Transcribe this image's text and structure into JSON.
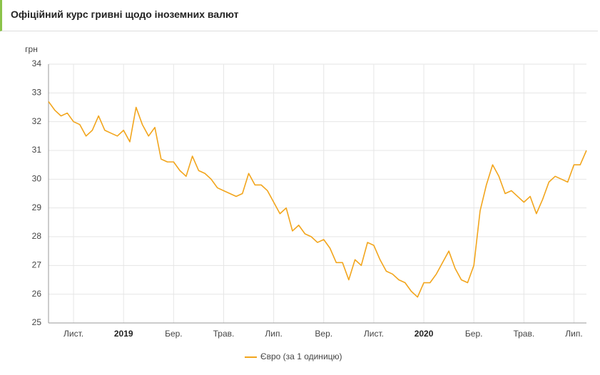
{
  "header": {
    "title": "Офіційний курс гривні щодо іноземних валют"
  },
  "chart_data": {
    "type": "line",
    "y_label": "грн",
    "categories": [
      null,
      null,
      null,
      null,
      "Лист.",
      null,
      null,
      null,
      null,
      null,
      null,
      null,
      "2019",
      null,
      null,
      null,
      null,
      null,
      null,
      null,
      "Бер.",
      null,
      null,
      null,
      null,
      null,
      null,
      null,
      "Трав.",
      null,
      null,
      null,
      null,
      null,
      null,
      null,
      "Лип.",
      null,
      null,
      null,
      null,
      null,
      null,
      null,
      "Вер.",
      null,
      null,
      null,
      null,
      null,
      null,
      null,
      "Лист.",
      null,
      null,
      null,
      null,
      null,
      null,
      null,
      "2020",
      null,
      null,
      null,
      null,
      null,
      null,
      null,
      "Бер.",
      null,
      null,
      null,
      null,
      null,
      null,
      null,
      "Трав.",
      null,
      null,
      null,
      null,
      null,
      null,
      null,
      "Лип.",
      null,
      null
    ],
    "series": [
      {
        "name": "Євро (за 1 одиницю)",
        "color": "#f2a51c",
        "values": [
          32.7,
          32.4,
          32.2,
          32.3,
          32.0,
          31.9,
          31.5,
          31.7,
          32.2,
          31.7,
          31.6,
          31.5,
          31.7,
          31.3,
          32.5,
          31.9,
          31.5,
          31.8,
          30.7,
          30.6,
          30.6,
          30.3,
          30.1,
          30.8,
          30.3,
          30.2,
          30.0,
          29.7,
          29.6,
          29.5,
          29.4,
          29.5,
          30.2,
          29.8,
          29.8,
          29.6,
          29.2,
          28.8,
          29.0,
          28.2,
          28.4,
          28.1,
          28.0,
          27.8,
          27.9,
          27.6,
          27.1,
          27.1,
          26.5,
          27.2,
          27.0,
          27.8,
          27.7,
          27.2,
          26.8,
          26.7,
          26.5,
          26.4,
          26.1,
          25.9,
          26.4,
          26.4,
          26.7,
          27.1,
          27.5,
          26.9,
          26.5,
          26.4,
          27.0,
          28.9,
          29.8,
          30.5,
          30.1,
          29.5,
          29.6,
          29.4,
          29.2,
          29.4,
          28.8,
          29.3,
          29.9,
          30.1,
          30.0,
          29.9,
          30.5,
          30.5,
          31.0
        ]
      }
    ],
    "ylim": [
      25,
      34
    ],
    "yticks": [
      25,
      26,
      27,
      28,
      29,
      30,
      31,
      32,
      33,
      34
    ],
    "grid": true,
    "legend": "bottom"
  }
}
